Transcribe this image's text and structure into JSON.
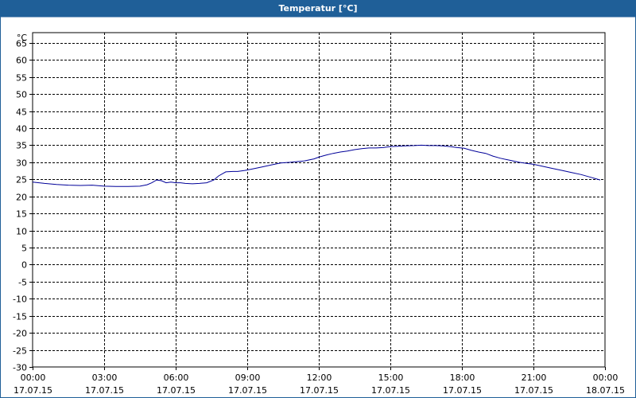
{
  "window": {
    "title": "Temperatur [°C]"
  },
  "chart_data": {
    "type": "line",
    "title": "Temperatur [°C]",
    "y_unit_label": "°C",
    "ylim": [
      -30,
      68
    ],
    "y_ticks": [
      "65",
      "60",
      "55",
      "50",
      "45",
      "40",
      "35",
      "30",
      "25",
      "20",
      "15",
      "10",
      "5",
      "0",
      "-5",
      "-10",
      "-15",
      "-20",
      "-25",
      "-30"
    ],
    "xlim": [
      0,
      24
    ],
    "x_ticks": [
      {
        "time": "00:00",
        "date": "17.07.15"
      },
      {
        "time": "03:00",
        "date": "17.07.15"
      },
      {
        "time": "06:00",
        "date": "17.07.15"
      },
      {
        "time": "09:00",
        "date": "17.07.15"
      },
      {
        "time": "12:00",
        "date": "17.07.15"
      },
      {
        "time": "15:00",
        "date": "17.07.15"
      },
      {
        "time": "18:00",
        "date": "17.07.15"
      },
      {
        "time": "21:00",
        "date": "17.07.15"
      },
      {
        "time": "00:00",
        "date": "18.07.15"
      }
    ],
    "grid": true,
    "line_color": "#000099",
    "series": [
      {
        "x": [
          0,
          0.5,
          1,
          1.5,
          2,
          2.5,
          3,
          3.5,
          4,
          4.5,
          4.8,
          5.0,
          5.2,
          5.4,
          5.6,
          5.8,
          6.0,
          6.2,
          6.4,
          6.7,
          7.0,
          7.3,
          7.6,
          7.8,
          8.1,
          8.4,
          8.6,
          8.9,
          9.2,
          9.6,
          10.0,
          10.4,
          10.8,
          11.1,
          11.4,
          11.8,
          12.0,
          12.3,
          12.6,
          12.9,
          13.2,
          13.5,
          13.8,
          14.1,
          14.4,
          14.7,
          15.0,
          15.3,
          15.6,
          16.0,
          16.3,
          16.6,
          16.9,
          17.2,
          17.5,
          17.8,
          18.1,
          18.4,
          18.7,
          19.0,
          19.3,
          19.6,
          20.0,
          20.4,
          20.8,
          21.0,
          21.4,
          21.8,
          22.2,
          22.6,
          23.0,
          23.4,
          23.8
        ],
        "y": [
          24.2,
          23.8,
          23.5,
          23.3,
          23.2,
          23.3,
          23.0,
          22.9,
          22.9,
          23.0,
          23.4,
          24.0,
          24.8,
          24.6,
          24.0,
          24.2,
          24.0,
          24.0,
          23.8,
          23.7,
          23.8,
          24.0,
          24.8,
          26.0,
          27.2,
          27.3,
          27.3,
          27.6,
          28.0,
          28.6,
          29.2,
          29.8,
          30.0,
          30.2,
          30.4,
          31.0,
          31.5,
          32.1,
          32.6,
          33.0,
          33.3,
          33.7,
          34.0,
          34.2,
          34.2,
          34.3,
          34.6,
          34.7,
          34.8,
          34.9,
          35.0,
          34.9,
          34.9,
          34.8,
          34.6,
          34.3,
          34.1,
          33.5,
          33.0,
          32.6,
          31.8,
          31.2,
          30.6,
          30.0,
          29.6,
          29.4,
          28.8,
          28.2,
          27.6,
          27.0,
          26.4,
          25.6,
          24.8
        ]
      }
    ]
  }
}
